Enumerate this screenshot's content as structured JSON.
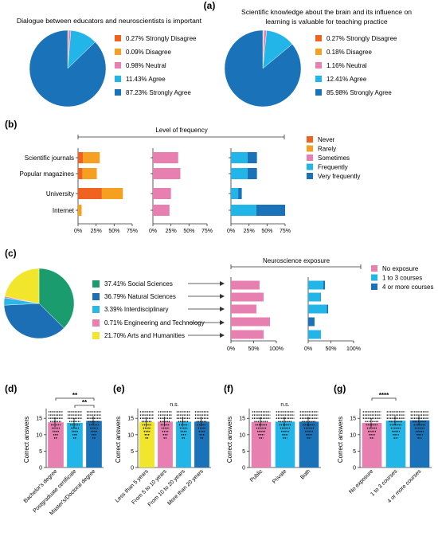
{
  "colors": {
    "never": "#f0621f",
    "rarely": "#f6a021",
    "sometimes": "#e87fb1",
    "frequently": "#22b6e8",
    "very_frequently": "#1a73b8",
    "social": "#1a9c6e",
    "natural": "#1c6fb5",
    "inter": "#29b7e6",
    "engineering": "#e77fb1",
    "arts": "#f2e62c",
    "no_exposure": "#e87fb1",
    "one_to_three": "#22b6e8",
    "four_plus": "#1a73b8",
    "dots": "#111111",
    "axis": "#333333"
  },
  "panel_labels": {
    "a": "(a)",
    "b": "(b)",
    "c": "(c)",
    "d": "(d)",
    "e": "(e)",
    "f": "(f)",
    "g": "(g)"
  },
  "chart_data": [
    {
      "panel": "a-left",
      "type": "pie",
      "title": "Dialogue between educators and neuroscientists is important",
      "labels": [
        "Strongly Disagree",
        "Disagree",
        "Neutral",
        "Agree",
        "Strongly Agree"
      ],
      "legend": [
        "0.27% Strongly Disagree",
        "0.09% Disagree",
        "0.98% Neutral",
        "11.43% Agree",
        "87.23% Strongly Agree"
      ],
      "values": [
        0.27,
        0.09,
        0.98,
        11.43,
        87.23
      ]
    },
    {
      "panel": "a-right",
      "type": "pie",
      "title_lines": [
        "Scientific knowledge about the brain and its influence on",
        "learning is valuable for teaching practice"
      ],
      "labels": [
        "Strongly Disagree",
        "Disagree",
        "Neutral",
        "Agree",
        "Strongly Agree"
      ],
      "legend": [
        "0.27% Strongly Disagree",
        "0.18% Disagree",
        "1.16% Neutral",
        "12.41% Agree",
        "85.98% Strongly Agree"
      ],
      "values": [
        0.27,
        0.18,
        1.16,
        12.41,
        85.98
      ]
    },
    {
      "panel": "b",
      "type": "bar",
      "orientation": "horizontal",
      "stacked": true,
      "title": "Level of frequency",
      "categories": [
        "Scientific journals",
        "Popular magazines",
        "University",
        "Internet"
      ],
      "tick_labels": [
        "0%",
        "25%",
        "50%",
        "75%"
      ],
      "xlim": [
        0,
        75
      ],
      "legend": [
        "Never",
        "Rarely",
        "Sometimes",
        "Frequently",
        "Very frequently"
      ],
      "legend_position": "right",
      "groups": [
        {
          "series": [
            {
              "name": "Never",
              "values": [
                7,
                6,
                33,
                0
              ]
            },
            {
              "name": "Rarely",
              "values": [
                23,
                20,
                29,
                5
              ]
            }
          ]
        },
        {
          "series": [
            {
              "name": "Sometimes",
              "values": [
                35,
                38,
                25,
                23
              ]
            }
          ]
        },
        {
          "series": [
            {
              "name": "Frequently",
              "values": [
                23,
                23,
                10,
                35
              ]
            },
            {
              "name": "Very frequently",
              "values": [
                13,
                13,
                5,
                40
              ]
            }
          ]
        }
      ]
    },
    {
      "panel": "c-pie",
      "type": "pie",
      "labels": [
        "Social Sciences",
        "Natural Sciences",
        "Interdisciplinary",
        "Engineering and Technology",
        "Arts and Humanities"
      ],
      "legend": [
        "37.41%  Social Sciences",
        "36.79%  Natural Sciences",
        "3.39%  Interdisciplinary",
        "0.71%  Engineering and Technology",
        "21.70%  Arts and Humanities"
      ],
      "values": [
        37.41,
        36.79,
        3.39,
        0.71,
        21.7
      ]
    },
    {
      "panel": "c-bars",
      "type": "bar",
      "orientation": "horizontal",
      "stacked": true,
      "title": "Neuroscience exposure",
      "categories": [
        "Social Sciences",
        "Natural Sciences",
        "Interdisciplinary",
        "Engineering and Technology",
        "Arts and Humanities"
      ],
      "tick_labels": [
        "0%",
        "50%",
        "100%"
      ],
      "xlim": [
        0,
        100
      ],
      "legend": [
        "No exposure",
        "1 to 3 courses",
        "4 or more courses"
      ],
      "legend_position": "top-right",
      "groups": [
        {
          "series": [
            {
              "name": "No exposure",
              "values": [
                63,
                72,
                56,
                86,
                72
              ]
            }
          ]
        },
        {
          "series": [
            {
              "name": "1 to 3 courses",
              "values": [
                33,
                27,
                41,
                0,
                28
              ]
            },
            {
              "name": "4 or more courses",
              "values": [
                4,
                1,
                3,
                14,
                0
              ]
            }
          ]
        }
      ]
    },
    {
      "panel": "d",
      "type": "bar",
      "categories": [
        "Bachelor's degree",
        "Postgraduate certificate",
        "Master's/Doctoral degree"
      ],
      "values": [
        13.8,
        13.6,
        14.2
      ],
      "ylabel": "Correct answers",
      "yticks": [
        "0",
        "5",
        "10",
        "15"
      ],
      "ylim": [
        0,
        17
      ],
      "bar_colors": [
        "#e87fb1",
        "#22b6e8",
        "#1a73b8"
      ],
      "significance": [
        {
          "from": 0,
          "to": 2,
          "label": "**"
        },
        {
          "from": 1,
          "to": 2,
          "label": "**"
        }
      ]
    },
    {
      "panel": "e",
      "type": "bar",
      "categories": [
        "Less than 5 years",
        "From 5 to 10 years",
        "From 10 to 20 years",
        "More than 20 years"
      ],
      "values": [
        13.9,
        14.0,
        14.0,
        14.0
      ],
      "ylabel": "Correct answers",
      "yticks": [
        "0",
        "5",
        "10",
        "15"
      ],
      "ylim": [
        0,
        17
      ],
      "bar_colors": [
        "#f2e62c",
        "#e87fb1",
        "#22b6e8",
        "#1a73b8"
      ],
      "annotation": "n.s."
    },
    {
      "panel": "f",
      "type": "bar",
      "categories": [
        "Public",
        "Private",
        "Both"
      ],
      "values": [
        13.9,
        14.0,
        14.0
      ],
      "ylabel": "Correct answers",
      "yticks": [
        "0",
        "5",
        "10",
        "15"
      ],
      "ylim": [
        0,
        17
      ],
      "bar_colors": [
        "#e87fb1",
        "#22b6e8",
        "#1a73b8"
      ],
      "annotation": "n.s."
    },
    {
      "panel": "g",
      "type": "bar",
      "categories": [
        "No exposure",
        "1 to 3 courses",
        "4 or more courses"
      ],
      "values": [
        13.6,
        14.3,
        14.4
      ],
      "ylabel": "Correct answers",
      "yticks": [
        "0",
        "5",
        "10",
        "15"
      ],
      "ylim": [
        0,
        17
      ],
      "bar_colors": [
        "#e87fb1",
        "#22b6e8",
        "#1a73b8"
      ],
      "significance": [
        {
          "from": 0,
          "to": 1,
          "label": "****"
        }
      ]
    }
  ]
}
